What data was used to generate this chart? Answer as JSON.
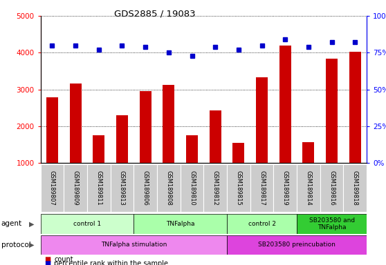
{
  "title": "GDS2885 / 19083",
  "samples": [
    "GSM189807",
    "GSM189809",
    "GSM189811",
    "GSM189813",
    "GSM189806",
    "GSM189808",
    "GSM189810",
    "GSM189812",
    "GSM189815",
    "GSM189817",
    "GSM189819",
    "GSM189814",
    "GSM189816",
    "GSM189818"
  ],
  "counts": [
    2780,
    3160,
    1750,
    2300,
    2950,
    3130,
    1760,
    2430,
    1550,
    3330,
    4200,
    1570,
    3840,
    4020
  ],
  "percentiles": [
    80,
    80,
    77,
    80,
    79,
    75,
    73,
    79,
    77,
    80,
    84,
    79,
    82,
    82
  ],
  "ylim_left": [
    1000,
    5000
  ],
  "ylim_right": [
    0,
    100
  ],
  "yticks_left": [
    1000,
    2000,
    3000,
    4000,
    5000
  ],
  "yticks_right": [
    0,
    25,
    50,
    75,
    100
  ],
  "ytick_right_labels": [
    "0%",
    "25%",
    "50%",
    "75%",
    "100%"
  ],
  "bar_color": "#cc0000",
  "dot_color": "#0000cc",
  "agent_groups": [
    {
      "label": "control 1",
      "start": 0,
      "end": 4,
      "color": "#ccffcc"
    },
    {
      "label": "TNFalpha",
      "start": 4,
      "end": 8,
      "color": "#aaffaa"
    },
    {
      "label": "control 2",
      "start": 8,
      "end": 11,
      "color": "#aaffaa"
    },
    {
      "label": "SB203580 and\nTNFalpha",
      "start": 11,
      "end": 14,
      "color": "#33cc33"
    }
  ],
  "protocol_groups": [
    {
      "label": "TNFalpha stimulation",
      "start": 0,
      "end": 8,
      "color": "#ee88ee"
    },
    {
      "label": "SB203580 preincubation",
      "start": 8,
      "end": 14,
      "color": "#dd44dd"
    }
  ],
  "tick_bg_color": "#cccccc",
  "bar_width": 0.5
}
